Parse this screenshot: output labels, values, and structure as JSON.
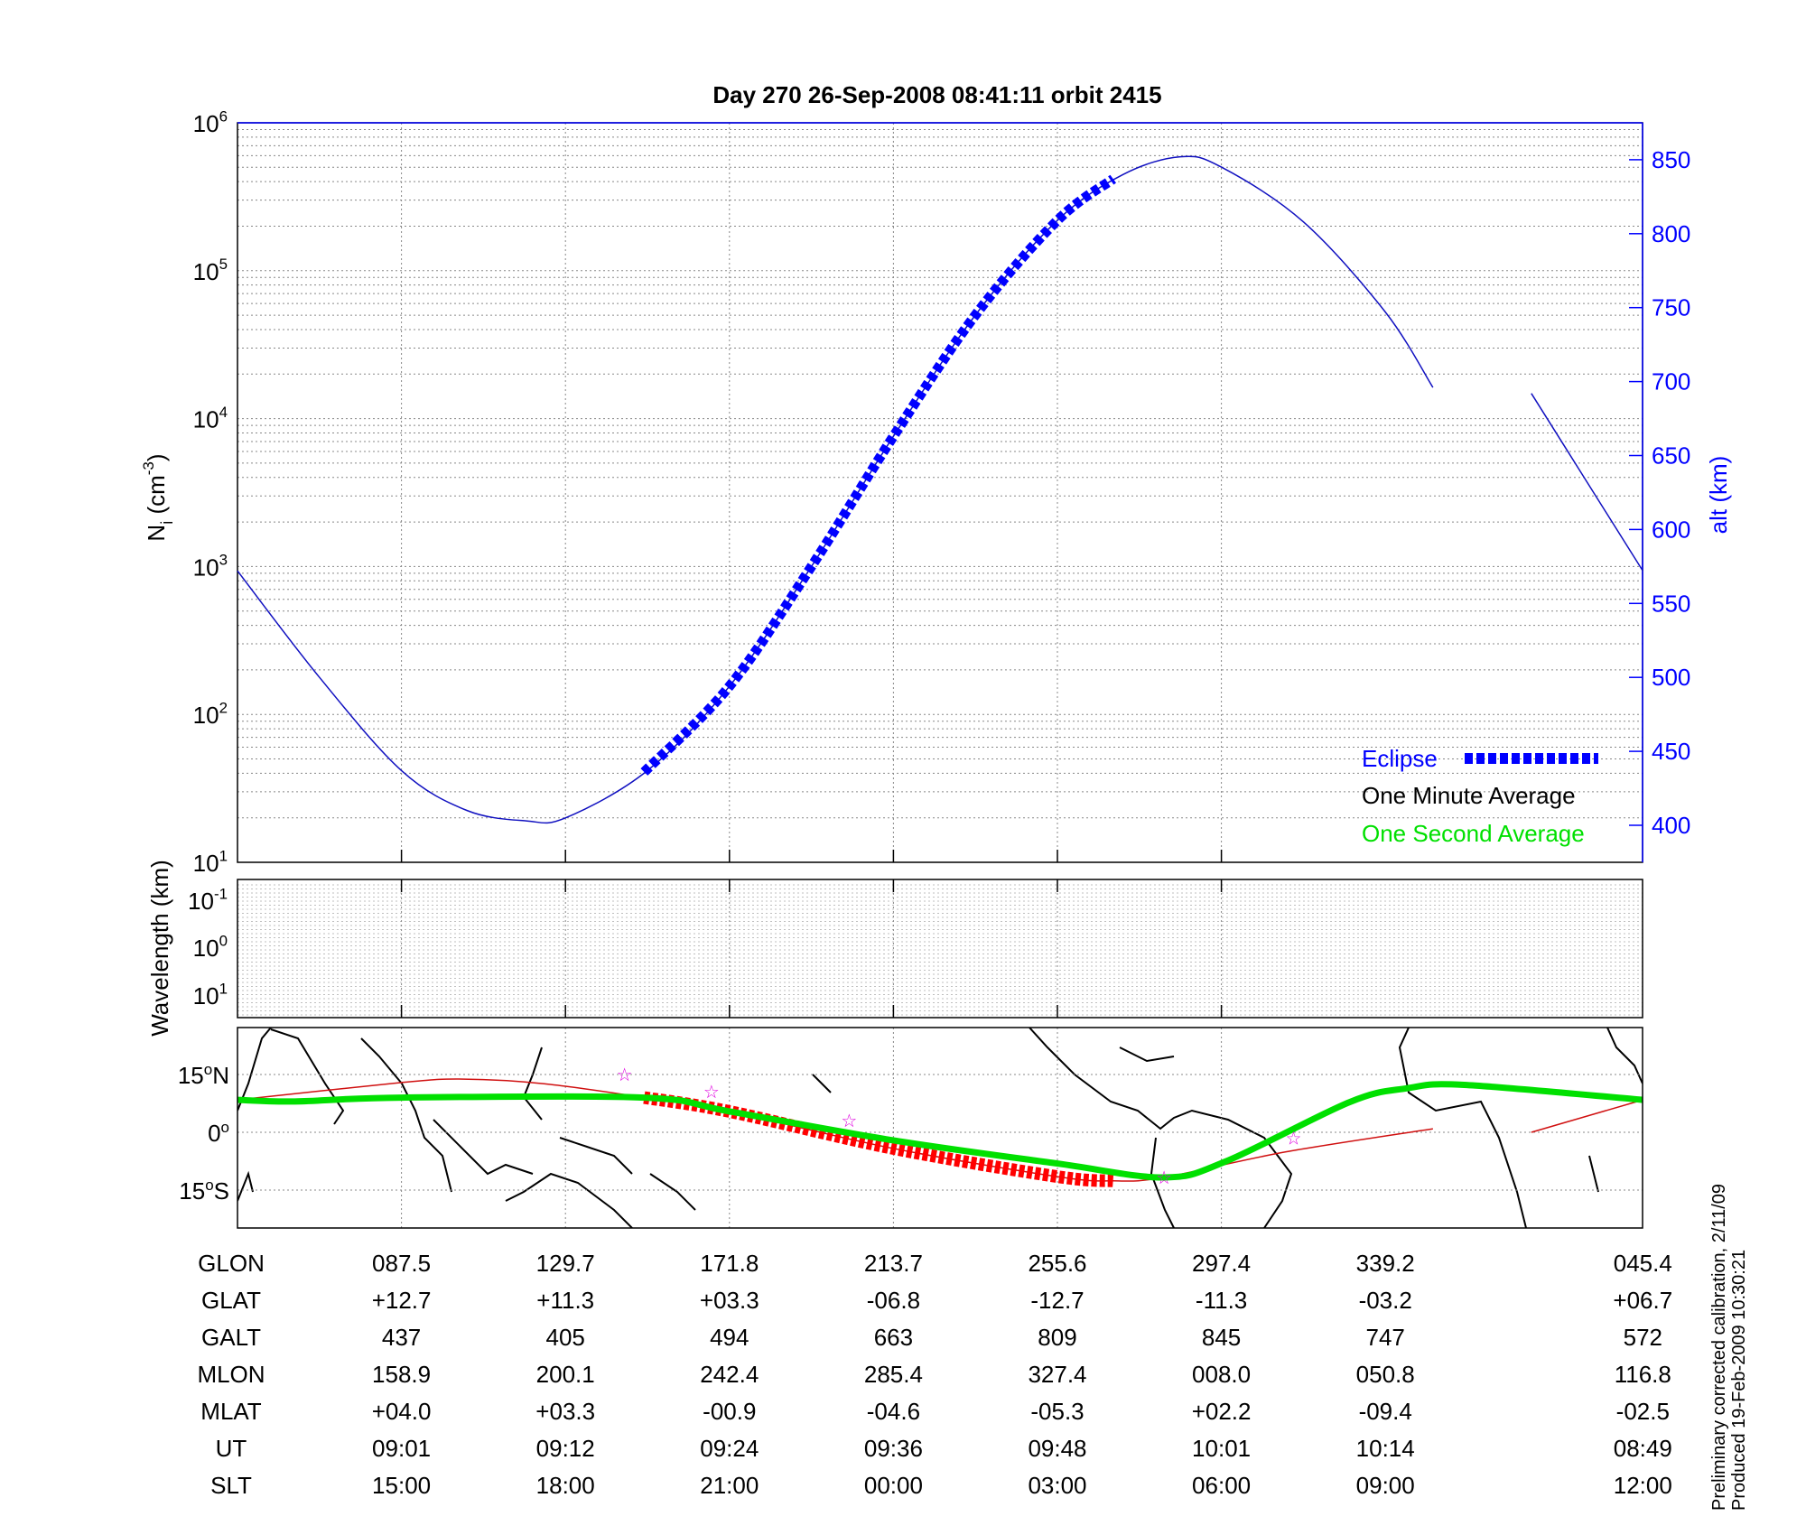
{
  "colors": {
    "alt_line": "#1010c0",
    "eclipse": "#0000ff",
    "green": "#00e000",
    "red_track": "#d01010",
    "red_eclipse": "#ff0000",
    "star": "#e000e0",
    "axis_blue": "#0000ff"
  },
  "chart_data": {
    "type": "line",
    "title": "Day 270  26-Sep-2008 08:41:11   orbit 2415",
    "panels": {
      "density": {
        "ylabel_main": "N",
        "ylabel_sub": "i",
        "ylabel_unit_pre": " (cm",
        "ylabel_unit_sup": "-3",
        "ylabel_unit_post": ")",
        "yscale": "log",
        "ylim": [
          10,
          1000000
        ],
        "yticks": [
          {
            "base": "10",
            "exp": "1"
          },
          {
            "base": "10",
            "exp": "2"
          },
          {
            "base": "10",
            "exp": "3"
          },
          {
            "base": "10",
            "exp": "4"
          },
          {
            "base": "10",
            "exp": "5"
          },
          {
            "base": "10",
            "exp": "6"
          }
        ],
        "right_ylabel": "alt (km)",
        "right_ylim": [
          375,
          875
        ],
        "right_yticks": [
          "400",
          "450",
          "500",
          "550",
          "600",
          "650",
          "700",
          "750",
          "800",
          "850"
        ],
        "grid": true,
        "altitude_series": {
          "name": "alt",
          "segments": [
            [
              [
                0,
                572
              ],
              [
                0.5,
                500
              ],
              [
                1,
                437
              ],
              [
                1.4,
                410
              ],
              [
                1.76,
                403
              ],
              [
                2,
                405
              ],
              [
                2.5,
                437
              ],
              [
                3,
                494
              ],
              [
                3.5,
                575
              ],
              [
                4,
                663
              ],
              [
                4.5,
                745
              ],
              [
                5,
                809
              ],
              [
                5.4,
                840
              ],
              [
                5.75,
                852
              ],
              [
                6,
                845
              ],
              [
                6.5,
                808
              ],
              [
                7,
                747
              ],
              [
                7.29,
                696
              ]
            ],
            [
              [
                7.89,
                692
              ],
              [
                8.23,
                632
              ],
              [
                8.57,
                572
              ]
            ]
          ]
        },
        "eclipse_series": {
          "name": "Eclipse",
          "points": [
            [
              2.48,
              436
            ],
            [
              3,
              494
            ],
            [
              3.5,
              575
            ],
            [
              4,
              663
            ],
            [
              4.5,
              745
            ],
            [
              5,
              809
            ],
            [
              5.34,
              837
            ]
          ]
        },
        "legend": {
          "position": "bottom-right",
          "entries": [
            "Eclipse",
            "One Minute Average",
            "One Second Average"
          ]
        }
      },
      "wavelength": {
        "ylabel": "Wavelength (km)",
        "yticks": [
          {
            "base": "10",
            "exp": "-1"
          },
          {
            "base": "10",
            "exp": "0"
          },
          {
            "base": "10",
            "exp": "1"
          }
        ],
        "grid": true
      },
      "map": {
        "yticks": [
          {
            "deg": "15",
            "sup": "o",
            "hemi": "N",
            "lat": 15
          },
          {
            "deg": "0",
            "sup": "o",
            "hemi": "",
            "lat": 0
          },
          {
            "deg": "15",
            "sup": "o",
            "hemi": "S",
            "lat": -15
          }
        ],
        "ylim": [
          -25,
          27
        ],
        "green_track": [
          [
            0,
            8.4
          ],
          [
            0.35,
            8
          ],
          [
            1,
            9
          ],
          [
            2.48,
            9
          ],
          [
            3,
            5.4
          ],
          [
            4,
            -2.1
          ],
          [
            5,
            -8.1
          ],
          [
            5.65,
            -11.7
          ],
          [
            6.03,
            -7.5
          ],
          [
            6.78,
            7.8
          ],
          [
            7.13,
            11.4
          ],
          [
            7.48,
            12.3
          ],
          [
            8.57,
            8.4
          ]
        ],
        "red_track": [
          [
            [
              0,
              8.4
            ],
            [
              1,
              12.9
            ],
            [
              1.38,
              13.8
            ],
            [
              1.87,
              12.6
            ],
            [
              2.48,
              9
            ],
            [
              3,
              5.4
            ],
            [
              4,
              -4.2
            ],
            [
              5,
              -11.5
            ],
            [
              5.34,
              -12.6
            ],
            [
              5.65,
              -11.7
            ],
            [
              6.39,
              -5.1
            ],
            [
              7.29,
              0.9
            ]
          ],
          [
            [
              7.89,
              0
            ],
            [
              8.57,
              8.4
            ]
          ]
        ],
        "red_eclipse": [
          [
            2.48,
            9
          ],
          [
            3,
            5.4
          ],
          [
            4,
            -4.2
          ],
          [
            5,
            -11.5
          ],
          [
            5.34,
            -12.6
          ]
        ],
        "stars": [
          [
            2.36,
            15
          ],
          [
            2.89,
            10.5
          ],
          [
            3.73,
            3
          ],
          [
            5.65,
            -11.7
          ],
          [
            6.44,
            -1.5
          ]
        ]
      }
    },
    "x_positions": [
      1,
      2,
      3,
      4,
      5,
      6,
      7,
      8.57
    ]
  },
  "table": {
    "rows": [
      {
        "label": "GLON",
        "values": [
          "087.5",
          "129.7",
          "171.8",
          "213.7",
          "255.6",
          "297.4",
          "339.2",
          "045.4"
        ]
      },
      {
        "label": "GLAT",
        "values": [
          "+12.7",
          "+11.3",
          "+03.3",
          "-06.8",
          "-12.7",
          "-11.3",
          "-03.2",
          "+06.7"
        ]
      },
      {
        "label": "GALT",
        "values": [
          "437",
          "405",
          "494",
          "663",
          "809",
          "845",
          "747",
          "572"
        ]
      },
      {
        "label": "MLON",
        "values": [
          "158.9",
          "200.1",
          "242.4",
          "285.4",
          "327.4",
          "008.0",
          "050.8",
          "116.8"
        ]
      },
      {
        "label": "MLAT",
        "values": [
          "+04.0",
          "+03.3",
          "-00.9",
          "-04.6",
          "-05.3",
          "+02.2",
          "-09.4",
          "-02.5"
        ]
      },
      {
        "label": "UT",
        "values": [
          "09:01",
          "09:12",
          "09:24",
          "09:36",
          "09:48",
          "10:01",
          "10:14",
          "08:49"
        ]
      },
      {
        "label": "SLT",
        "values": [
          "15:00",
          "18:00",
          "21:00",
          "00:00",
          "03:00",
          "06:00",
          "09:00",
          "12:00"
        ]
      }
    ]
  },
  "footer": {
    "line1": "Preliminary corrected calibration, 2/11/09",
    "line2": "Produced 19-Feb-2009 10:30:21"
  }
}
